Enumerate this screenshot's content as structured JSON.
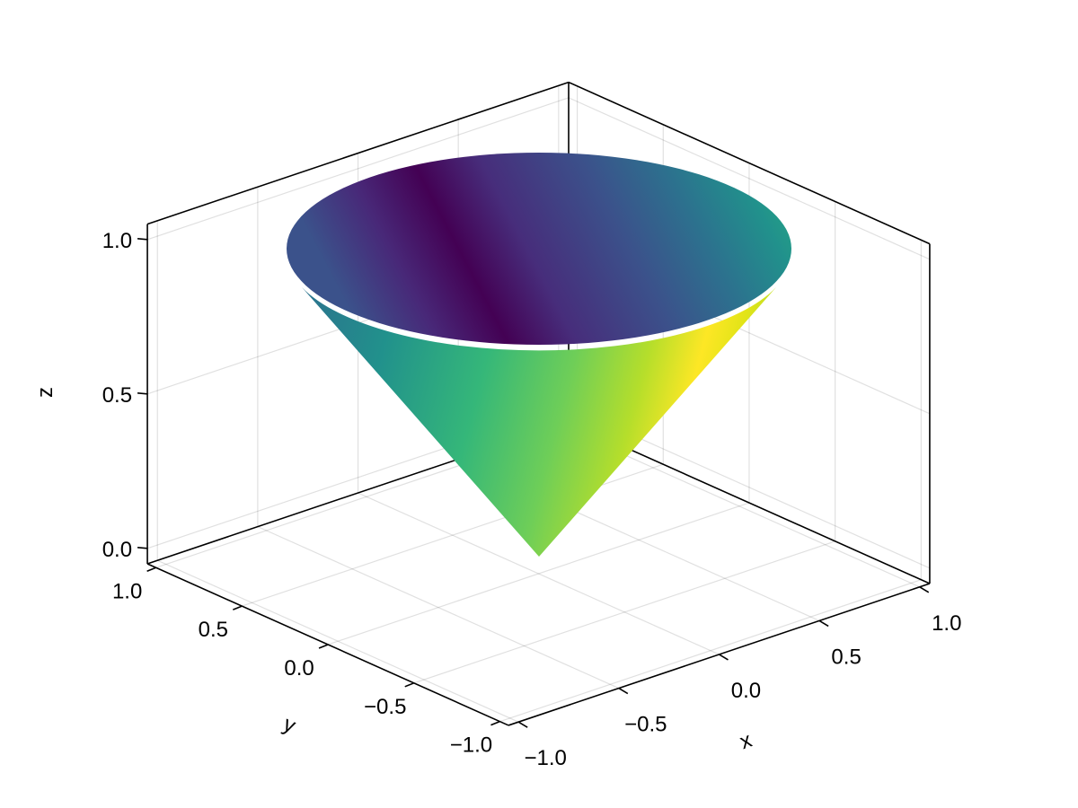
{
  "chart_data": {
    "type": "surface",
    "function": "z = sqrt(x^2 + y^2)",
    "colormap": "viridis",
    "colormap_stops": [
      "#440154",
      "#472d7b",
      "#3b528b",
      "#2c728e",
      "#21918c",
      "#28ae80",
      "#5ec962",
      "#addc30",
      "#fde725"
    ],
    "x": {
      "label": "x",
      "range": [
        -1,
        1
      ],
      "ticks": [
        -1.0,
        -0.5,
        0.0,
        0.5,
        1.0
      ],
      "tick_labels": [
        "−1.0",
        "−0.5",
        "0.0",
        "0.5",
        "1.0"
      ]
    },
    "y": {
      "label": "y",
      "range": [
        -1,
        1
      ],
      "ticks": [
        -1.0,
        -0.5,
        0.0,
        0.5,
        1.0
      ],
      "tick_labels": [
        "−1.0",
        "−0.5",
        "0.0",
        "0.5",
        "1.0"
      ]
    },
    "z": {
      "label": "z",
      "range": [
        0,
        1
      ],
      "ticks": [
        0.0,
        0.5,
        1.0
      ],
      "tick_labels": [
        "0.0",
        "0.5",
        "1.0"
      ]
    },
    "grid": true,
    "legend": "none"
  }
}
